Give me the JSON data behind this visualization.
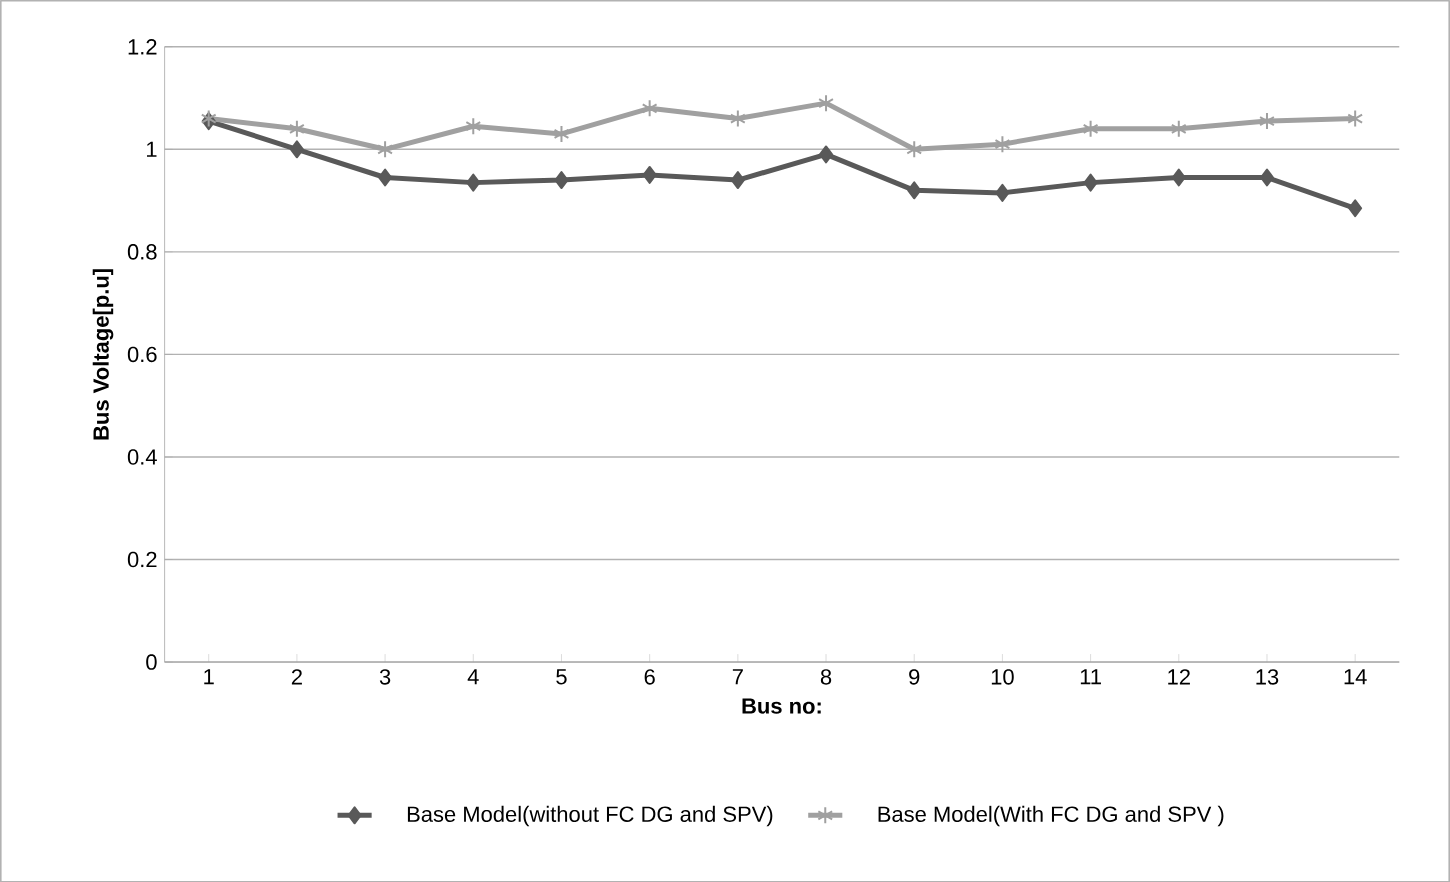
{
  "chart_data": {
    "type": "line",
    "xlabel": "Bus no:",
    "ylabel": "Bus Voltage[p.u]",
    "categories": [
      "1",
      "2",
      "3",
      "4",
      "5",
      "6",
      "7",
      "8",
      "9",
      "10",
      "11",
      "12",
      "13",
      "14"
    ],
    "series": [
      {
        "name": "Base Model(without FC DG and SPV)",
        "color": "#595959",
        "marker": "diamond",
        "values": [
          1.055,
          1.0,
          0.945,
          0.935,
          0.94,
          0.95,
          0.94,
          0.99,
          0.92,
          0.915,
          0.935,
          0.945,
          0.945,
          0.885
        ]
      },
      {
        "name": "Base Model(With FC DG and SPV )",
        "color": "#a0a0a0",
        "marker": "cross",
        "values": [
          1.06,
          1.04,
          1.0,
          1.045,
          1.03,
          1.08,
          1.06,
          1.09,
          1.0,
          1.01,
          1.04,
          1.04,
          1.055,
          1.06
        ]
      }
    ],
    "ylim": [
      0,
      1.2
    ],
    "yticks": [
      0,
      0.2,
      0.4,
      0.6,
      0.8,
      1,
      1.2
    ],
    "grid": "y",
    "legend": "bottom",
    "line_style": "solid"
  }
}
